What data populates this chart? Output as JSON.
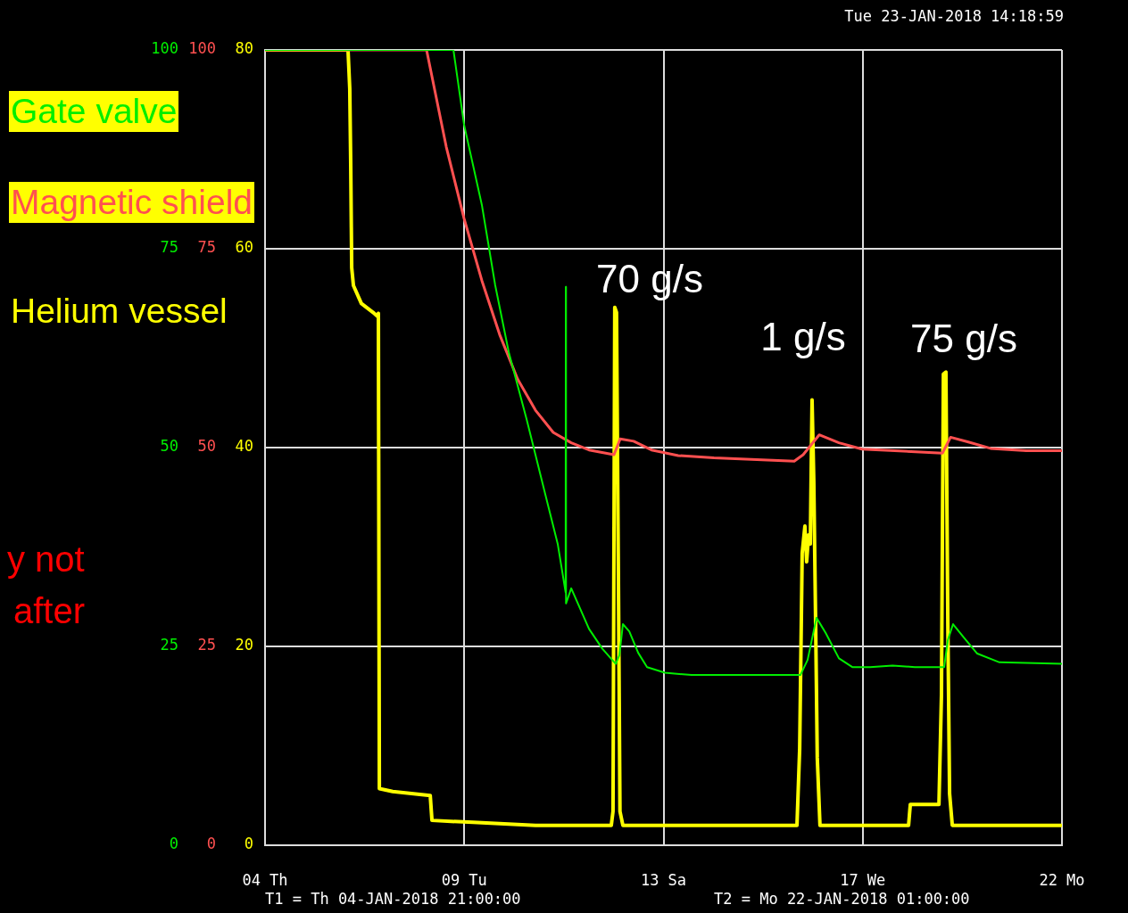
{
  "chart_data": {
    "type": "line",
    "marker": "none",
    "line_style": "solid",
    "grid": true,
    "legend": "left",
    "xlim": [
      "2018-01-04T21:00",
      "2018-01-22T01:00"
    ],
    "xticks": [
      {
        "value": "2018-01-04T21:00",
        "label": "04 Th"
      },
      {
        "value": "2018-01-09T04:00",
        "label": "09 Tu"
      },
      {
        "value": "2018-01-13T11:00",
        "label": "13 Sa"
      },
      {
        "value": "2018-01-17T18:00",
        "label": "17 We"
      },
      {
        "value": "2018-01-22T01:00",
        "label": "22 Mo"
      }
    ],
    "ylim": [
      0,
      100
    ],
    "yticks": [
      0,
      25,
      50,
      75,
      100
    ],
    "y3lim": [
      0,
      100
    ],
    "y3ticks": [
      0,
      25,
      50,
      75,
      100
    ],
    "y2lim": [
      0,
      80
    ],
    "y2ticks": [
      0,
      20,
      40,
      60,
      80
    ],
    "series": [
      {
        "name": "Gate valve",
        "color": "#00ee00",
        "axis": "y",
        "x": [
          "2018-01-04T21:00",
          "2018-01-08T22:24",
          "2018-01-09T03:54",
          "2018-01-09T13:06",
          "2018-01-09T20:00",
          "2018-01-10T03:00",
          "2018-01-10T12:12",
          "2018-01-10T21:24",
          "2018-01-11T04:18",
          "2018-01-11T08:24",
          "2018-01-11T08:30",
          "2018-01-11T08:36",
          "2018-01-11T11:18",
          "2018-01-11T20:30",
          "2018-01-12T03:24",
          "2018-01-12T10:18",
          "2018-01-12T12:12",
          "2018-01-12T14:00",
          "2018-01-12T17:18",
          "2018-01-12T21:54",
          "2018-01-13T02:30",
          "2018-01-13T11:42",
          "2018-01-14T01:30",
          "2018-01-16T09:48",
          "2018-01-16T13:30",
          "2018-01-16T18:06",
          "2018-01-16T22:48",
          "2018-01-17T05:42",
          "2018-01-17T12:36",
          "2018-01-17T21:48",
          "2018-01-18T09:24",
          "2018-01-18T20:54",
          "2018-01-19T12:06",
          "2018-01-19T14:00",
          "2018-01-19T16:42",
          "2018-01-19T22:18",
          "2018-01-20T05:12",
          "2018-01-20T16:42",
          "2018-01-22T01:00"
        ],
        "values": [
          100,
          100,
          90.6,
          80.5,
          70.4,
          62,
          53.6,
          44.6,
          37.9,
          31.8,
          70.2,
          30.4,
          32.3,
          27.2,
          24.7,
          22.8,
          23.9,
          27.8,
          26.9,
          24.2,
          22.4,
          21.7,
          21.4,
          21.4,
          23.3,
          28.6,
          26.7,
          23.5,
          22.4,
          22.4,
          22.6,
          22.4,
          22.4,
          25.8,
          27.8,
          26.1,
          24.1,
          23,
          22.8
        ]
      },
      {
        "name": "Magnetic shield",
        "color": "#ff5050",
        "axis": "y3",
        "x": [
          "2018-01-04T21:00",
          "2018-01-08T08:30",
          "2018-01-08T18:42",
          "2018-01-09T03:54",
          "2018-01-09T13:06",
          "2018-01-09T22:18",
          "2018-01-10T07:36",
          "2018-01-10T16:48",
          "2018-01-11T02:00",
          "2018-01-11T11:18",
          "2018-01-11T20:30",
          "2018-01-12T09:24",
          "2018-01-12T12:36",
          "2018-01-12T19:36",
          "2018-01-13T04:48",
          "2018-01-13T18:36",
          "2018-01-14T13:06",
          "2018-01-16T06:36",
          "2018-01-16T11:12",
          "2018-01-16T19:30",
          "2018-01-17T05:42",
          "2018-01-17T17:42",
          "2018-01-19T11:12",
          "2018-01-19T15:24",
          "2018-01-20T00:36",
          "2018-01-20T12:06",
          "2018-01-21T06:36",
          "2018-01-22T01:00"
        ],
        "values": [
          100,
          100,
          87.8,
          78.8,
          71,
          64.2,
          58.6,
          54.7,
          51.9,
          50.6,
          49.7,
          49.1,
          51.1,
          50.8,
          49.7,
          49,
          48.7,
          48.3,
          49.1,
          51.6,
          50.6,
          49.8,
          49.3,
          51.3,
          50.7,
          49.9,
          49.6,
          49.6
        ]
      },
      {
        "name": "Helium vessel",
        "color": "#ffff00",
        "axis": "y2",
        "x": [
          "2018-01-04T21:00",
          "2018-01-06T15:54",
          "2018-01-06T16:48",
          "2018-01-06T17:18",
          "2018-01-06T17:48",
          "2018-01-06T18:42",
          "2018-01-06T22:48",
          "2018-01-07T04:48",
          "2018-01-07T07:06",
          "2018-01-07T07:36",
          "2018-01-07T08:06",
          "2018-01-07T15:00",
          "2018-01-08T10:24",
          "2018-01-08T11:18",
          "2018-01-09T08:30",
          "2018-01-10T16:48",
          "2018-01-12T08:00",
          "2018-01-12T08:54",
          "2018-01-12T09:48",
          "2018-01-12T10:42",
          "2018-01-12T11:36",
          "2018-01-12T12:30",
          "2018-01-12T14:00",
          "2018-01-16T08:00",
          "2018-01-16T09:24",
          "2018-01-16T10:42",
          "2018-01-16T12:06",
          "2018-01-16T13:00",
          "2018-01-16T14:00",
          "2018-01-16T14:54",
          "2018-01-16T15:48",
          "2018-01-16T16:42",
          "2018-01-16T17:36",
          "2018-01-16T18:30",
          "2018-01-16T19:54",
          "2018-01-18T17:42",
          "2018-01-18T18:36",
          "2018-01-19T09:24",
          "2018-01-19T10:42",
          "2018-01-19T11:42",
          "2018-01-19T13:00",
          "2018-01-19T14:00",
          "2018-01-19T14:54",
          "2018-01-19T16:18",
          "2018-01-22T01:00"
        ],
        "values": [
          80,
          80,
          76.1,
          68.4,
          58.1,
          56.3,
          54.5,
          53.6,
          53.2,
          53.5,
          5.7,
          5.4,
          5,
          2.5,
          2.3,
          2,
          2,
          3.4,
          54.1,
          53.6,
          29.4,
          3.4,
          2,
          2,
          9.7,
          29.4,
          32.1,
          28.5,
          31.2,
          30.3,
          44.8,
          36.6,
          23.1,
          8.8,
          2,
          2,
          4.1,
          4.1,
          15.1,
          47.4,
          47.6,
          22.2,
          5.2,
          2,
          2
        ]
      }
    ],
    "annotations": [
      "70 g/s",
      "1 g/s",
      "75 g/s",
      "Tue 23-JAN-2018 14:18:59",
      "T1 = Th 04-JAN-2018 21:00:00",
      "T2 = Mo 22-JAN-2018 01:00:00",
      "y not",
      "after"
    ]
  }
}
